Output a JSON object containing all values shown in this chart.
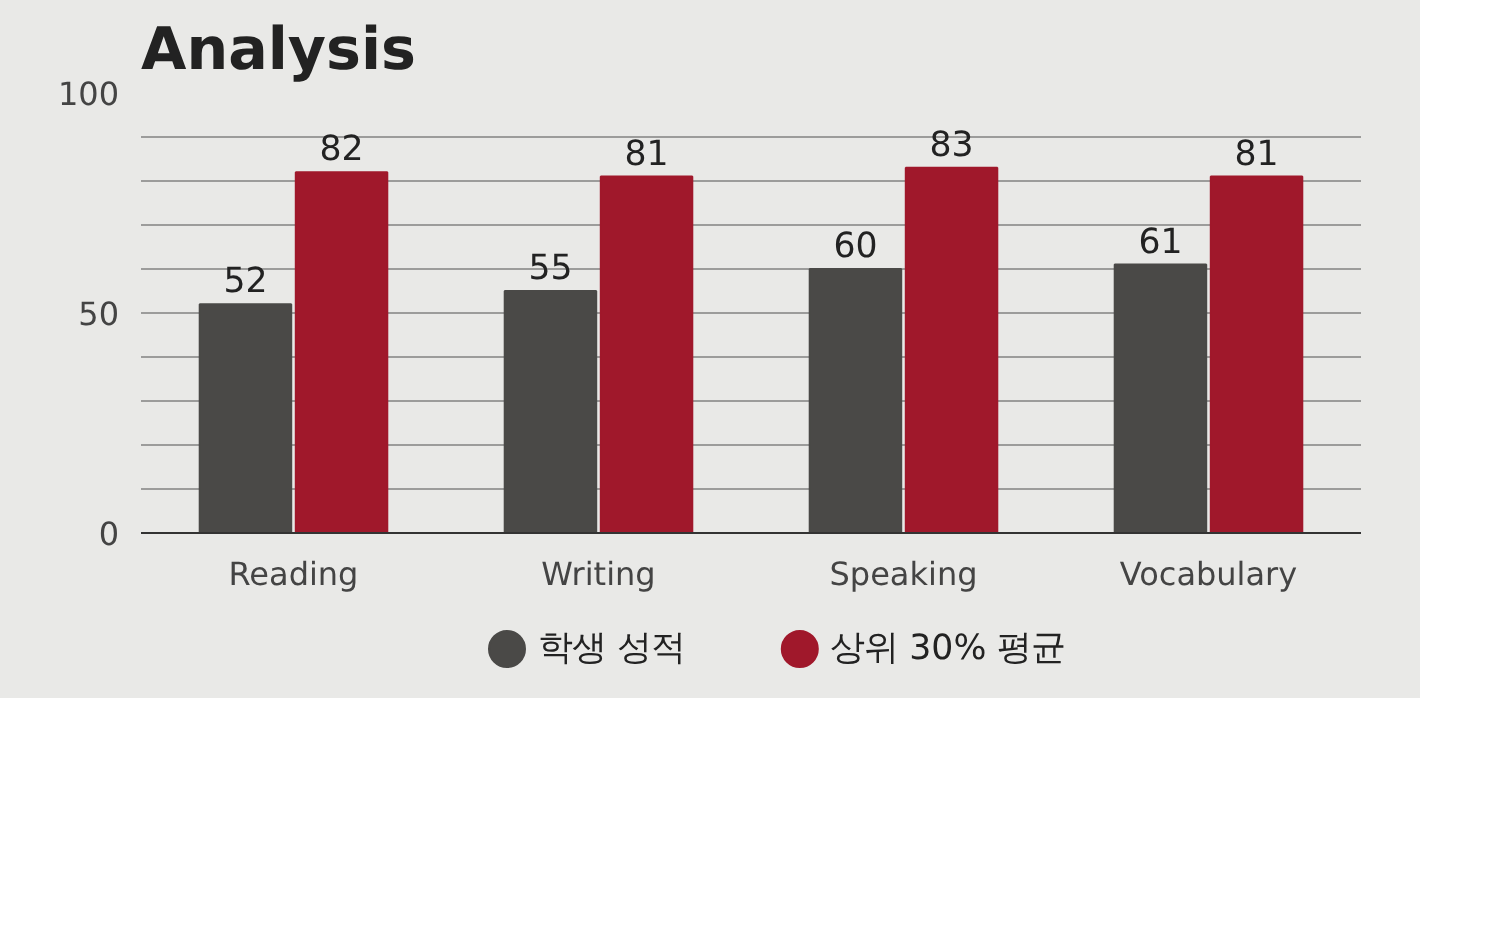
{
  "chart_data": {
    "type": "bar",
    "title": "Analysis",
    "categories": [
      "Reading",
      "Writing",
      "Speaking",
      "Vocabulary"
    ],
    "series": [
      {
        "name": "학생 성적",
        "color": "#4a4947",
        "values": [
          52,
          55,
          60,
          61
        ]
      },
      {
        "name": "상위 30% 평균",
        "color": "#a0182b",
        "values": [
          82,
          81,
          83,
          81
        ]
      }
    ],
    "ylim": [
      0,
      100
    ],
    "yticks": [
      0,
      {
        "value": 10,
        "label": null
      },
      {
        "value": 20,
        "label": null
      },
      {
        "value": 30,
        "label": null
      },
      {
        "value": 40,
        "label": null
      },
      50,
      {
        "value": 60,
        "label": null
      },
      {
        "value": 70,
        "label": null
      },
      {
        "value": 80,
        "label": null
      },
      {
        "value": 90,
        "label": null
      },
      100
    ],
    "grid": "y",
    "legend": "bottom",
    "data_labels": true
  }
}
